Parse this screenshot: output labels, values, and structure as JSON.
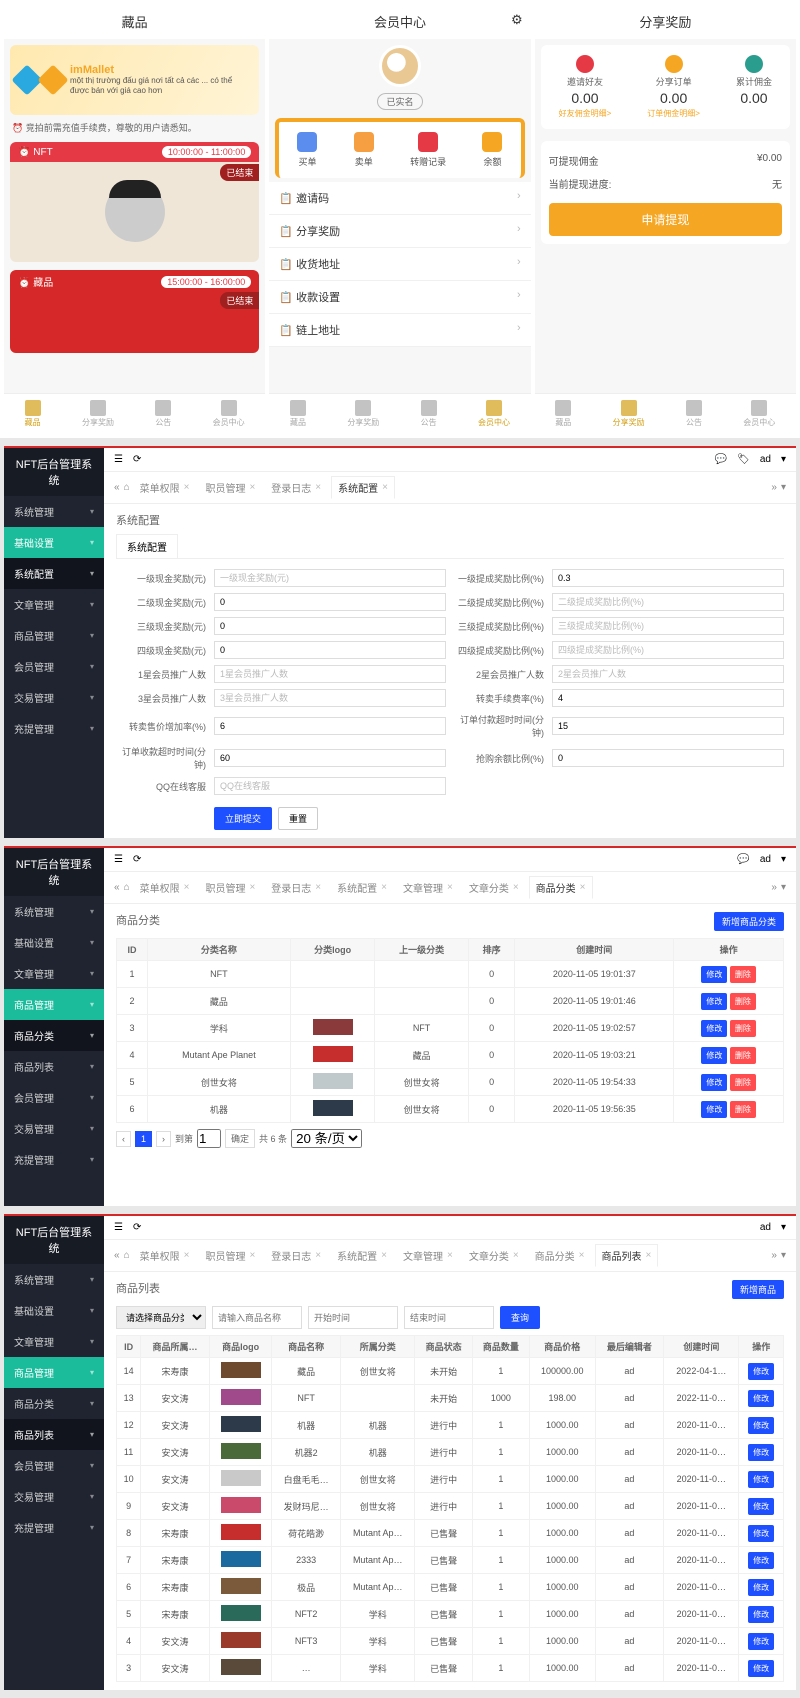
{
  "mobile1": {
    "title": "藏品",
    "banner_title": "imMallet",
    "banner_sub": "một thị trường đấu giá nơi tất cả các ... có thể được bán với giá cao hơn",
    "notice": "⏰ 竞拍前需充值手续费，尊敬的用户请悉知。",
    "cards": [
      {
        "label": "NFT",
        "time": "10:00:00 - 11:00:00",
        "status": "已结束",
        "bg": "#f0e6d8"
      },
      {
        "label": "藏品",
        "time": "15:00:00 - 16:00:00",
        "status": "已结束",
        "bg": "#d62828"
      }
    ],
    "tabs": [
      "藏品",
      "分享奖励",
      "公告",
      "会员中心"
    ]
  },
  "mobile2": {
    "title": "会员中心",
    "verified": "已实名",
    "menu": [
      "买单",
      "卖单",
      "转赠记录",
      "余额"
    ],
    "list": [
      "邀请码",
      "分享奖励",
      "收货地址",
      "收款设置",
      "链上地址"
    ],
    "tabs": [
      "藏品",
      "分享奖励",
      "公告",
      "会员中心"
    ]
  },
  "mobile3": {
    "title": "分享奖励",
    "stats": [
      {
        "label": "邀请好友",
        "value": "0.00",
        "link": "好友佣金明细>"
      },
      {
        "label": "分享订单",
        "value": "0.00",
        "link": "订单佣金明细>"
      },
      {
        "label": "累计佣金",
        "value": "0.00",
        "link": ""
      }
    ],
    "withdraw_label": "可提现佣金",
    "withdraw_value": "¥0.00",
    "progress_label": "当前提现进度:",
    "progress_value": "无",
    "withdraw_btn": "申请提现",
    "tabs": [
      "藏品",
      "分享奖励",
      "公告",
      "会员中心"
    ]
  },
  "admin_common": {
    "title": "NFT后台管理系统",
    "user": "ad",
    "sidebar_all": [
      "系统管理",
      "基础设置",
      "系统配置",
      "文章管理",
      "商品管理",
      "商品分类",
      "商品列表",
      "会员管理",
      "交易管理",
      "充提管理"
    ]
  },
  "admin1": {
    "sidebar": [
      {
        "label": "系统管理",
        "style": ""
      },
      {
        "label": "基础设置",
        "style": "active-teal"
      },
      {
        "label": "系统配置",
        "style": "active-dark"
      },
      {
        "label": "文章管理",
        "style": ""
      },
      {
        "label": "商品管理",
        "style": ""
      },
      {
        "label": "会员管理",
        "style": ""
      },
      {
        "label": "交易管理",
        "style": ""
      },
      {
        "label": "充提管理",
        "style": ""
      }
    ],
    "breadcrumbs": [
      "菜单权限",
      "职员管理",
      "登录日志",
      "系统配置"
    ],
    "active_bc_index": 3,
    "panel": "系统配置",
    "fields": [
      {
        "l1": "一级现金奖励(元)",
        "v1": "",
        "p1": "一级现金奖励(元)",
        "l2": "一级提成奖励比例(%)",
        "v2": "0.3",
        "p2": ""
      },
      {
        "l1": "二级现金奖励(元)",
        "v1": "0",
        "p1": "",
        "l2": "二级提成奖励比例(%)",
        "v2": "",
        "p2": "二级提成奖励比例(%)"
      },
      {
        "l1": "三级现金奖励(元)",
        "v1": "0",
        "p1": "",
        "l2": "三级提成奖励比例(%)",
        "v2": "",
        "p2": "三级提成奖励比例(%)"
      },
      {
        "l1": "四级现金奖励(元)",
        "v1": "0",
        "p1": "",
        "l2": "四级提成奖励比例(%)",
        "v2": "",
        "p2": "四级提成奖励比例(%)"
      },
      {
        "l1": "1星会员推广人数",
        "v1": "",
        "p1": "1星会员推广人数",
        "l2": "2星会员推广人数",
        "v2": "",
        "p2": "2星会员推广人数"
      },
      {
        "l1": "3星会员推广人数",
        "v1": "",
        "p1": "3星会员推广人数",
        "l2": "转卖手续费率(%)",
        "v2": "4",
        "p2": ""
      },
      {
        "l1": "转卖售价增加率(%)",
        "v1": "6",
        "p1": "",
        "l2": "订单付款超时时间(分钟)",
        "v2": "15",
        "p2": ""
      },
      {
        "l1": "订单收款超时时间(分钟)",
        "v1": "60",
        "p1": "",
        "l2": "抢购余额比例(%)",
        "v2": "0",
        "p2": ""
      },
      {
        "l1": "QQ在线客服",
        "v1": "",
        "p1": "QQ在线客服",
        "l2": "",
        "v2": "",
        "p2": ""
      }
    ],
    "submit": "立即提交",
    "reset": "重置"
  },
  "admin2": {
    "sidebar": [
      {
        "label": "系统管理",
        "style": ""
      },
      {
        "label": "基础设置",
        "style": ""
      },
      {
        "label": "文章管理",
        "style": ""
      },
      {
        "label": "商品管理",
        "style": "active-teal"
      },
      {
        "label": "商品分类",
        "style": "active-dark"
      },
      {
        "label": "商品列表",
        "style": ""
      },
      {
        "label": "会员管理",
        "style": ""
      },
      {
        "label": "交易管理",
        "style": ""
      },
      {
        "label": "充提管理",
        "style": ""
      }
    ],
    "breadcrumbs": [
      "菜单权限",
      "职员管理",
      "登录日志",
      "系统配置",
      "文章管理",
      "文章分类",
      "商品分类"
    ],
    "active_bc_index": 6,
    "panel": "商品分类",
    "add_btn": "新增商品分类",
    "columns": [
      "ID",
      "分类名称",
      "分类logo",
      "上一级分类",
      "排序",
      "创建时间",
      "操作"
    ],
    "rows": [
      {
        "id": "1",
        "name": "NFT",
        "logo": "",
        "parent": "",
        "sort": "0",
        "time": "2020-11-05 19:01:37"
      },
      {
        "id": "2",
        "name": "藏品",
        "logo": "",
        "parent": "",
        "sort": "0",
        "time": "2020-11-05 19:01:46"
      },
      {
        "id": "3",
        "name": "学科",
        "logo": "#8a3a3a",
        "parent": "NFT",
        "sort": "0",
        "time": "2020-11-05 19:02:57"
      },
      {
        "id": "4",
        "name": "Mutant Ape Planet",
        "logo": "#c62d2d",
        "parent": "藏品",
        "sort": "0",
        "time": "2020-11-05 19:03:21"
      },
      {
        "id": "5",
        "name": "创世女将",
        "logo": "#bfc9cc",
        "parent": "创世女将",
        "sort": "0",
        "time": "2020-11-05 19:54:33"
      },
      {
        "id": "6",
        "name": "机器",
        "logo": "#2c3a4a",
        "parent": "创世女将",
        "sort": "0",
        "time": "2020-11-05 19:56:35"
      }
    ],
    "edit": "修改",
    "del": "删除",
    "pager": {
      "to": "到第",
      "page": "1",
      "go": "确定",
      "total": "共 6 条",
      "pagesize": "20 条/页"
    }
  },
  "admin3": {
    "sidebar": [
      {
        "label": "系统管理",
        "style": ""
      },
      {
        "label": "基础设置",
        "style": ""
      },
      {
        "label": "文章管理",
        "style": ""
      },
      {
        "label": "商品管理",
        "style": "active-teal"
      },
      {
        "label": "商品分类",
        "style": ""
      },
      {
        "label": "商品列表",
        "style": "active-dark"
      },
      {
        "label": "会员管理",
        "style": ""
      },
      {
        "label": "交易管理",
        "style": ""
      },
      {
        "label": "充提管理",
        "style": ""
      }
    ],
    "breadcrumbs": [
      "菜单权限",
      "职员管理",
      "登录日志",
      "系统配置",
      "文章管理",
      "文章分类",
      "商品分类",
      "商品列表"
    ],
    "active_bc_index": 7,
    "panel": "商品列表",
    "add_btn": "新增商品",
    "filters": {
      "cat_placeholder": "请选择商品分类",
      "name_placeholder": "请输入商品名称",
      "start_placeholder": "开始时间",
      "end_placeholder": "结束时间",
      "search": "查询"
    },
    "columns": [
      "ID",
      "商品所属…",
      "商品logo",
      "商品名称",
      "所属分类",
      "商品状态",
      "商品数量",
      "商品价格",
      "最后编辑者",
      "创建时间",
      "操作"
    ],
    "rows": [
      {
        "id": "14",
        "owner": "宋寿康",
        "logo": "#6e4a2f",
        "name": "藏品",
        "cat": "创世女将",
        "status": "未开始",
        "qty": "1",
        "price": "100000.00",
        "editor": "ad",
        "time": "2022-04-1…"
      },
      {
        "id": "13",
        "owner": "安文涛",
        "logo": "#a04a8c",
        "name": "NFT",
        "cat": "",
        "status": "未开始",
        "qty": "1000",
        "price": "198.00",
        "editor": "ad",
        "time": "2022-11-0…"
      },
      {
        "id": "12",
        "owner": "安文涛",
        "logo": "#2c3a4a",
        "name": "机器",
        "cat": "机器",
        "status": "进行中",
        "qty": "1",
        "price": "1000.00",
        "editor": "ad",
        "time": "2020-11-0…"
      },
      {
        "id": "11",
        "owner": "安文涛",
        "logo": "#4a6a3a",
        "name": "机器2",
        "cat": "机器",
        "status": "进行中",
        "qty": "1",
        "price": "1000.00",
        "editor": "ad",
        "time": "2020-11-0…"
      },
      {
        "id": "10",
        "owner": "安文涛",
        "logo": "#c9c9c9",
        "name": "白盘毛毛…",
        "cat": "创世女将",
        "status": "进行中",
        "qty": "1",
        "price": "1000.00",
        "editor": "ad",
        "time": "2020-11-0…"
      },
      {
        "id": "9",
        "owner": "安文涛",
        "logo": "#c94a6a",
        "name": "发财玛尼…",
        "cat": "创世女将",
        "status": "进行中",
        "qty": "1",
        "price": "1000.00",
        "editor": "ad",
        "time": "2020-11-0…"
      },
      {
        "id": "8",
        "owner": "宋寿康",
        "logo": "#c62d2d",
        "name": "荷花皓渺",
        "cat": "Mutant Ap…",
        "status": "已售聲",
        "qty": "1",
        "price": "1000.00",
        "editor": "ad",
        "time": "2020-11-0…"
      },
      {
        "id": "7",
        "owner": "宋寿康",
        "logo": "#1a6aa0",
        "name": "2333",
        "cat": "Mutant Ap…",
        "status": "已售聲",
        "qty": "1",
        "price": "1000.00",
        "editor": "ad",
        "time": "2020-11-0…"
      },
      {
        "id": "6",
        "owner": "宋寿康",
        "logo": "#7a5a3a",
        "name": "极品",
        "cat": "Mutant Ap…",
        "status": "已售聲",
        "qty": "1",
        "price": "1000.00",
        "editor": "ad",
        "time": "2020-11-0…"
      },
      {
        "id": "5",
        "owner": "宋寿康",
        "logo": "#2a6a5a",
        "name": "NFT2",
        "cat": "学科",
        "status": "已售聲",
        "qty": "1",
        "price": "1000.00",
        "editor": "ad",
        "time": "2020-11-0…"
      },
      {
        "id": "4",
        "owner": "安文涛",
        "logo": "#9a3a2a",
        "name": "NFT3",
        "cat": "学科",
        "status": "已售聲",
        "qty": "1",
        "price": "1000.00",
        "editor": "ad",
        "time": "2020-11-0…"
      },
      {
        "id": "3",
        "owner": "安文涛",
        "logo": "#5a4a3a",
        "name": "…",
        "cat": "学科",
        "status": "已售聲",
        "qty": "1",
        "price": "1000.00",
        "editor": "ad",
        "time": "2020-11-0…"
      }
    ],
    "edit": "修改"
  }
}
